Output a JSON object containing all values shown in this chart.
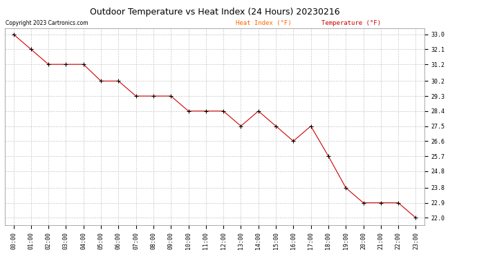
{
  "title": "Outdoor Temperature vs Heat Index (24 Hours) 20230216",
  "copyright": "Copyright 2023 Cartronics.com",
  "legend_heat": "Heat Index (°F)",
  "legend_temp": "Temperature (°F)",
  "x_labels": [
    "00:00",
    "01:00",
    "02:00",
    "03:00",
    "04:00",
    "05:00",
    "06:00",
    "07:00",
    "08:00",
    "09:00",
    "10:00",
    "11:00",
    "12:00",
    "13:00",
    "14:00",
    "15:00",
    "16:00",
    "17:00",
    "18:00",
    "19:00",
    "20:00",
    "21:00",
    "22:00",
    "23:00"
  ],
  "temperature": [
    33.0,
    32.1,
    31.2,
    31.2,
    31.2,
    30.2,
    30.2,
    29.3,
    29.3,
    29.3,
    28.4,
    28.4,
    28.4,
    27.5,
    28.4,
    27.5,
    26.6,
    27.5,
    25.7,
    23.8,
    22.9,
    22.9,
    22.9,
    22.0
  ],
  "line_color": "#cc0000",
  "marker_color": "#000000",
  "y_ticks": [
    22.0,
    22.9,
    23.8,
    24.8,
    25.7,
    26.6,
    27.5,
    28.4,
    29.3,
    30.2,
    31.2,
    32.1,
    33.0
  ],
  "y_min": 21.55,
  "y_max": 33.35,
  "background_color": "#ffffff",
  "grid_color": "#c8c8c8",
  "title_color": "#000000",
  "legend_heat_color": "#ff6600",
  "legend_temp_color": "#cc0000",
  "title_fontsize": 9,
  "tick_fontsize": 6,
  "copyright_fontsize": 5.5,
  "legend_fontsize": 6.5
}
